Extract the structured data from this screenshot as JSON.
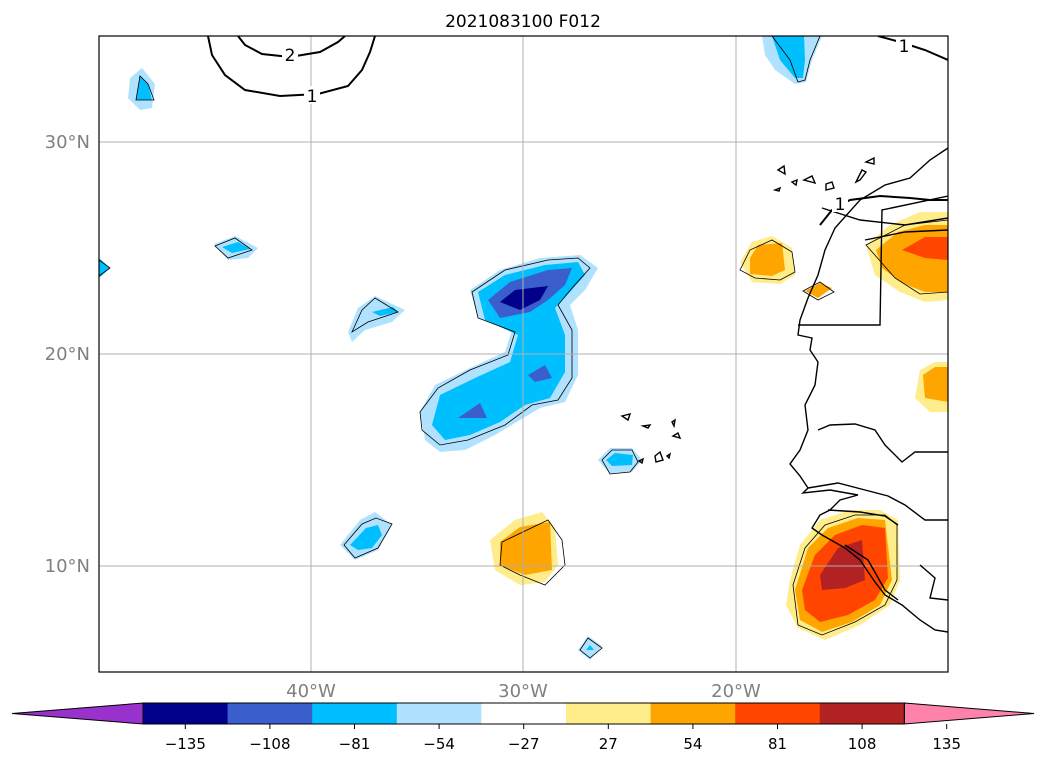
{
  "title": "2021083100 F012",
  "map": {
    "lat_labels": [
      "30°N",
      "20°N",
      "10°N"
    ],
    "lon_labels": [
      "40°W",
      "30°W",
      "20°W"
    ],
    "contour_labels": [
      "2",
      "1",
      "1",
      "1"
    ]
  },
  "colorbar": {
    "ticks": [
      "−135",
      "−108",
      "−81",
      "−54",
      "−27",
      "27",
      "54",
      "81",
      "108",
      "135"
    ],
    "colors": [
      "#9932CC",
      "#00008B",
      "#3A5FCD",
      "#00BFFF",
      "#B0E2FF",
      "#FFFFFF",
      "#FFEC8B",
      "#FFA500",
      "#FF4500",
      "#B22222",
      "#FF82AB"
    ]
  },
  "colors": {
    "frame": "#000000",
    "grid": "#b0b0b0",
    "axis_label": "#808080"
  }
}
